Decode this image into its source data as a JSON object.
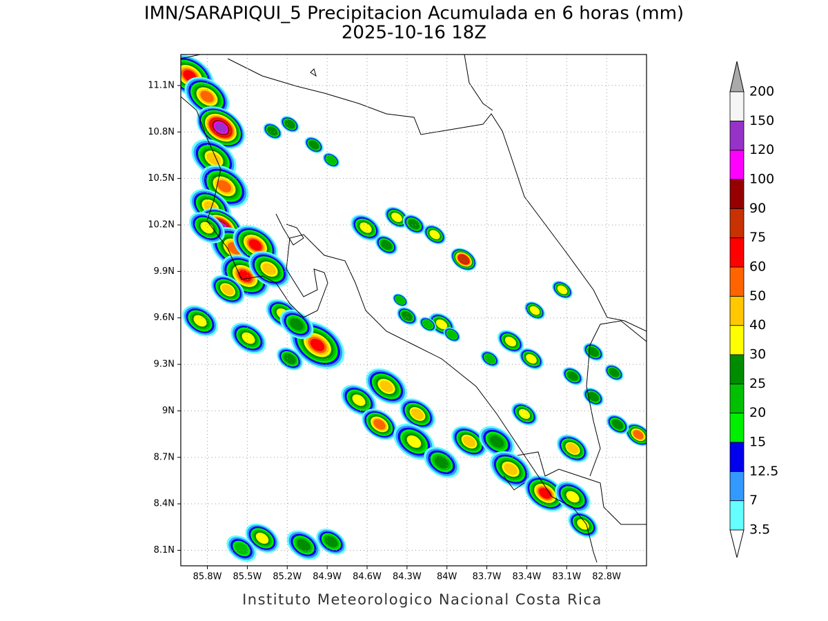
{
  "header": {
    "title": "IMN/SARAPIQUI_5 Precipitacion Acumulada en 6 horas (mm)",
    "subtitle": "2025-10-16 18Z"
  },
  "map": {
    "type": "contour-map",
    "xlim": [
      -86.0,
      -82.5
    ],
    "ylim": [
      8.0,
      11.3
    ],
    "xticks": [
      {
        "value": -85.8,
        "label": "85.8W"
      },
      {
        "value": -85.5,
        "label": "85.5W"
      },
      {
        "value": -85.2,
        "label": "85.2W"
      },
      {
        "value": -84.9,
        "label": "84.9W"
      },
      {
        "value": -84.6,
        "label": "84.6W"
      },
      {
        "value": -84.3,
        "label": "84.3W"
      },
      {
        "value": -84.0,
        "label": "84W"
      },
      {
        "value": -83.7,
        "label": "83.7W"
      },
      {
        "value": -83.4,
        "label": "83.4W"
      },
      {
        "value": -83.1,
        "label": "83.1W"
      },
      {
        "value": -82.8,
        "label": "82.8W"
      }
    ],
    "yticks": [
      {
        "value": 8.1,
        "label": "8.1N"
      },
      {
        "value": 8.4,
        "label": "8.4N"
      },
      {
        "value": 8.7,
        "label": "8.7N"
      },
      {
        "value": 9.0,
        "label": "9N"
      },
      {
        "value": 9.3,
        "label": "9.3N"
      },
      {
        "value": 9.6,
        "label": "9.6N"
      },
      {
        "value": 9.9,
        "label": "9.9N"
      },
      {
        "value": 10.2,
        "label": "10.2N"
      },
      {
        "value": 10.5,
        "label": "10.5N"
      },
      {
        "value": 10.8,
        "label": "10.8N"
      },
      {
        "value": 11.1,
        "label": "11.1N"
      }
    ],
    "grid": true
  },
  "colorbar": {
    "levels": [
      3.5,
      7,
      12.5,
      15,
      20,
      25,
      30,
      40,
      50,
      60,
      75,
      90,
      100,
      120,
      150,
      200
    ],
    "colors": [
      "#66ffff",
      "#3399ff",
      "#0000ee",
      "#00ee00",
      "#00c000",
      "#008c00",
      "#ffff00",
      "#ffc800",
      "#ff6400",
      "#ff0000",
      "#c83200",
      "#960000",
      "#ff00ff",
      "#9632c8",
      "#f5f5f5"
    ],
    "over_color": "#aaaaaa",
    "under_color": "#ffffff"
  },
  "footer": "Instituto Meteorologico Nacional Costa Rica"
}
